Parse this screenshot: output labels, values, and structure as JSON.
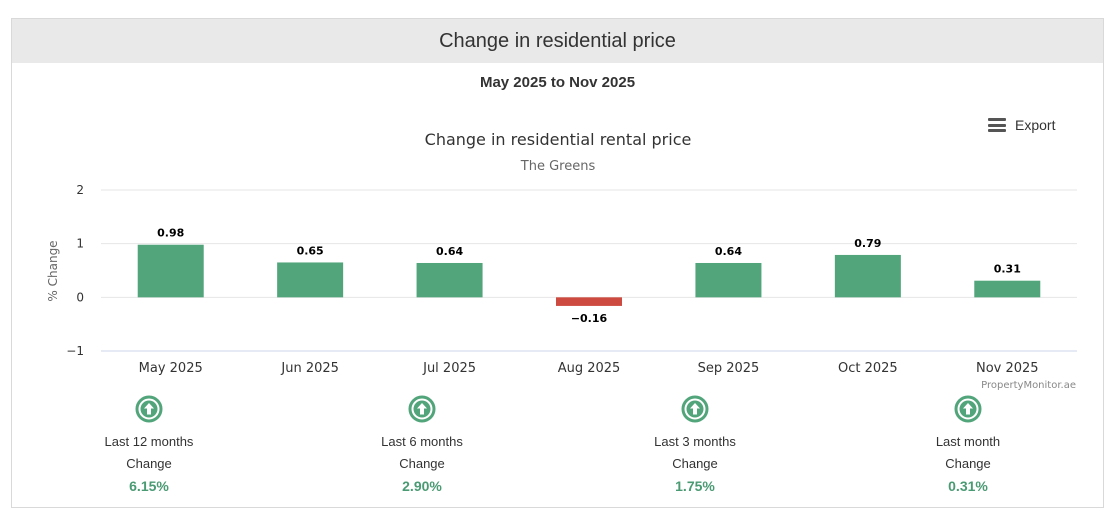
{
  "header": {
    "title": "Change in residential price"
  },
  "date_range": "May 2025 to Nov 2025",
  "export_label": "Export",
  "credit": "PropertyMonitor.ae",
  "colors": {
    "positive": "#52a57b",
    "negative": "#cc4a3f",
    "stat_value": "#4a9a73"
  },
  "chart_data": {
    "type": "bar",
    "title": "Change in residential rental price",
    "subtitle": "The Greens",
    "ylabel": "% Change",
    "xlabel": "",
    "categories": [
      "May 2025",
      "Jun 2025",
      "Jul 2025",
      "Aug 2025",
      "Sep 2025",
      "Oct 2025",
      "Nov 2025"
    ],
    "values": [
      0.98,
      0.65,
      0.64,
      -0.16,
      0.64,
      0.79,
      0.31
    ],
    "data_labels": [
      "0.98",
      "0.65",
      "0.64",
      "−0.16",
      "0.64",
      "0.79",
      "0.31"
    ],
    "ylim": [
      -1,
      2
    ],
    "yticks": [
      2,
      1,
      0,
      -1
    ],
    "ytick_labels": [
      "2",
      "1",
      "0",
      "−1"
    ],
    "grid": true
  },
  "stats": [
    {
      "icon": "arrow-up-circle-icon",
      "label": "Last 12 months",
      "change_label": "Change",
      "value": "6.15%"
    },
    {
      "icon": "arrow-up-circle-icon",
      "label": "Last 6 months",
      "change_label": "Change",
      "value": "2.90%"
    },
    {
      "icon": "arrow-up-circle-icon",
      "label": "Last 3 months",
      "change_label": "Change",
      "value": "1.75%"
    },
    {
      "icon": "arrow-up-circle-icon",
      "label": "Last month",
      "change_label": "Change",
      "value": "0.31%"
    }
  ]
}
